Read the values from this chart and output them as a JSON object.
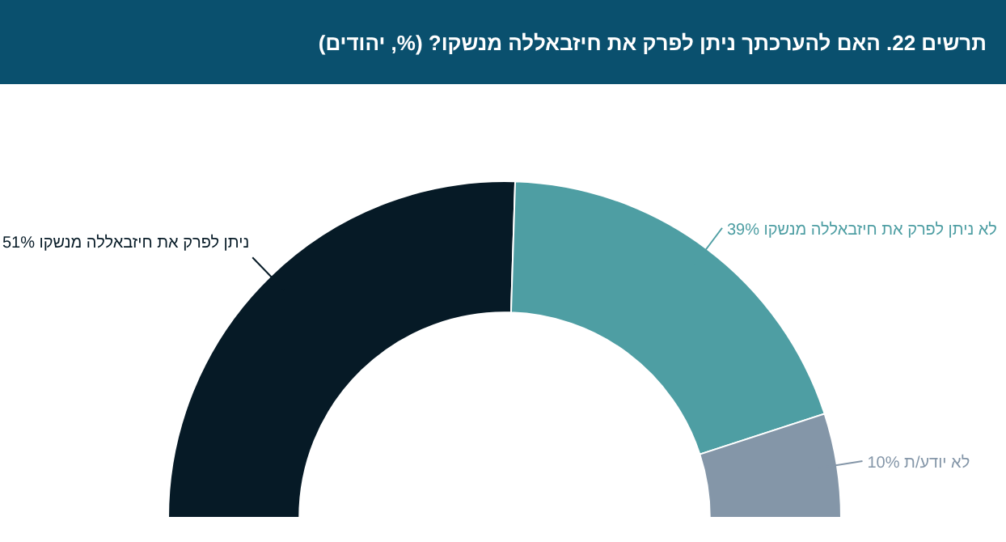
{
  "chart_data": {
    "type": "donut",
    "title": "תרשים 22. האם להערכתך ניתן לפרק את חיזבאללה מנשקו? (%, יהודים)",
    "categories": [
      "ניתן לפרק את חיזבאללה מנשקו",
      "לא ניתן לפרק את חיזבאללה מנשקו",
      "לא יודע/ת"
    ],
    "values": [
      51,
      39,
      10
    ],
    "colors": [
      "#061a26",
      "#4e9ea3",
      "#8496a8"
    ],
    "value_labels": [
      "51%",
      "39%",
      "10%"
    ]
  }
}
